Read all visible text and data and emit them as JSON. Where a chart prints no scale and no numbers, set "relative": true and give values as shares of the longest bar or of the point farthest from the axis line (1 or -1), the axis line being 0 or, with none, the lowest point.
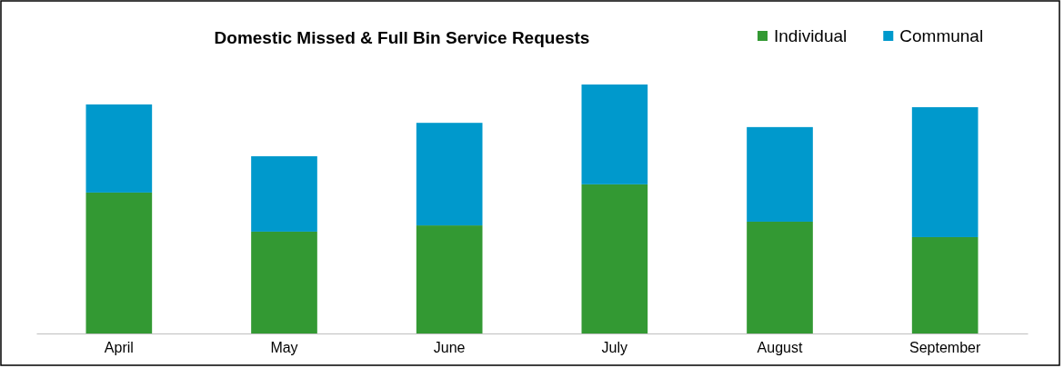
{
  "chart_data": {
    "type": "bar",
    "title": "Domestic Missed & Full Bin Service Requests",
    "categories": [
      "April",
      "May",
      "June",
      "July",
      "August",
      "September"
    ],
    "stacked": true,
    "relative": true,
    "legend": "top right",
    "series": [
      {
        "name": "Individual",
        "color": "#339933",
        "values": [
          0.566,
          0.409,
          0.434,
          0.599,
          0.449,
          0.387
        ]
      },
      {
        "name": "Communal",
        "color": "#0099cc",
        "values": [
          0.354,
          0.303,
          0.412,
          0.401,
          0.38,
          0.522
        ]
      }
    ]
  }
}
